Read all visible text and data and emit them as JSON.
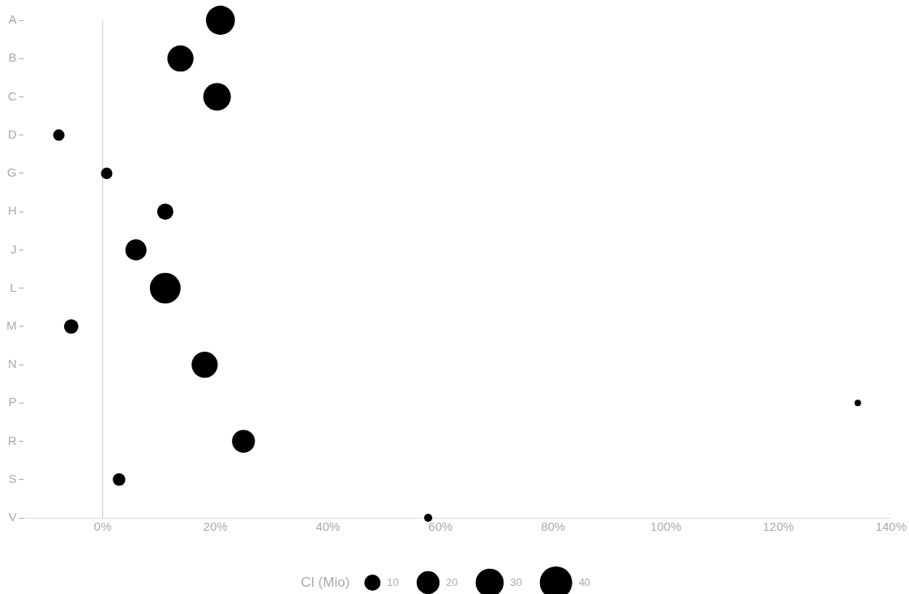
{
  "chart_data": {
    "type": "bubble",
    "orientation": "horizontal",
    "categories": [
      "A",
      "B",
      "C",
      "D",
      "G",
      "H",
      "J",
      "L",
      "M",
      "N",
      "P",
      "R",
      "S",
      "V"
    ],
    "values": [
      20.9,
      13.8,
      20.3,
      -7.8,
      0.7,
      11.1,
      5.9,
      11.1,
      -5.6,
      18.1,
      134.1,
      25.0,
      2.9,
      57.8
    ],
    "sizes": [
      32,
      26,
      29,
      5,
      5,
      10,
      17,
      36,
      8,
      26,
      1.6,
      20,
      6,
      2.5
    ],
    "color": "#000000",
    "size_legend": [
      10,
      20,
      30,
      40
    ],
    "legend_title": "CI (Mio)",
    "xlim": [
      -14,
      140
    ],
    "xticks": [
      {
        "value": 0,
        "label": "0%"
      },
      {
        "value": 20,
        "label": "20%"
      },
      {
        "value": 40,
        "label": "40%"
      },
      {
        "value": 60,
        "label": "60%"
      },
      {
        "value": 80,
        "label": "80%"
      },
      {
        "value": 100,
        "label": "100%"
      },
      {
        "value": 120,
        "label": "120%"
      },
      {
        "value": 140,
        "label": "140%"
      }
    ],
    "ref_lines": [
      {
        "axis": "x",
        "value": 0,
        "color": "#cccccc"
      }
    ],
    "grid": false
  }
}
